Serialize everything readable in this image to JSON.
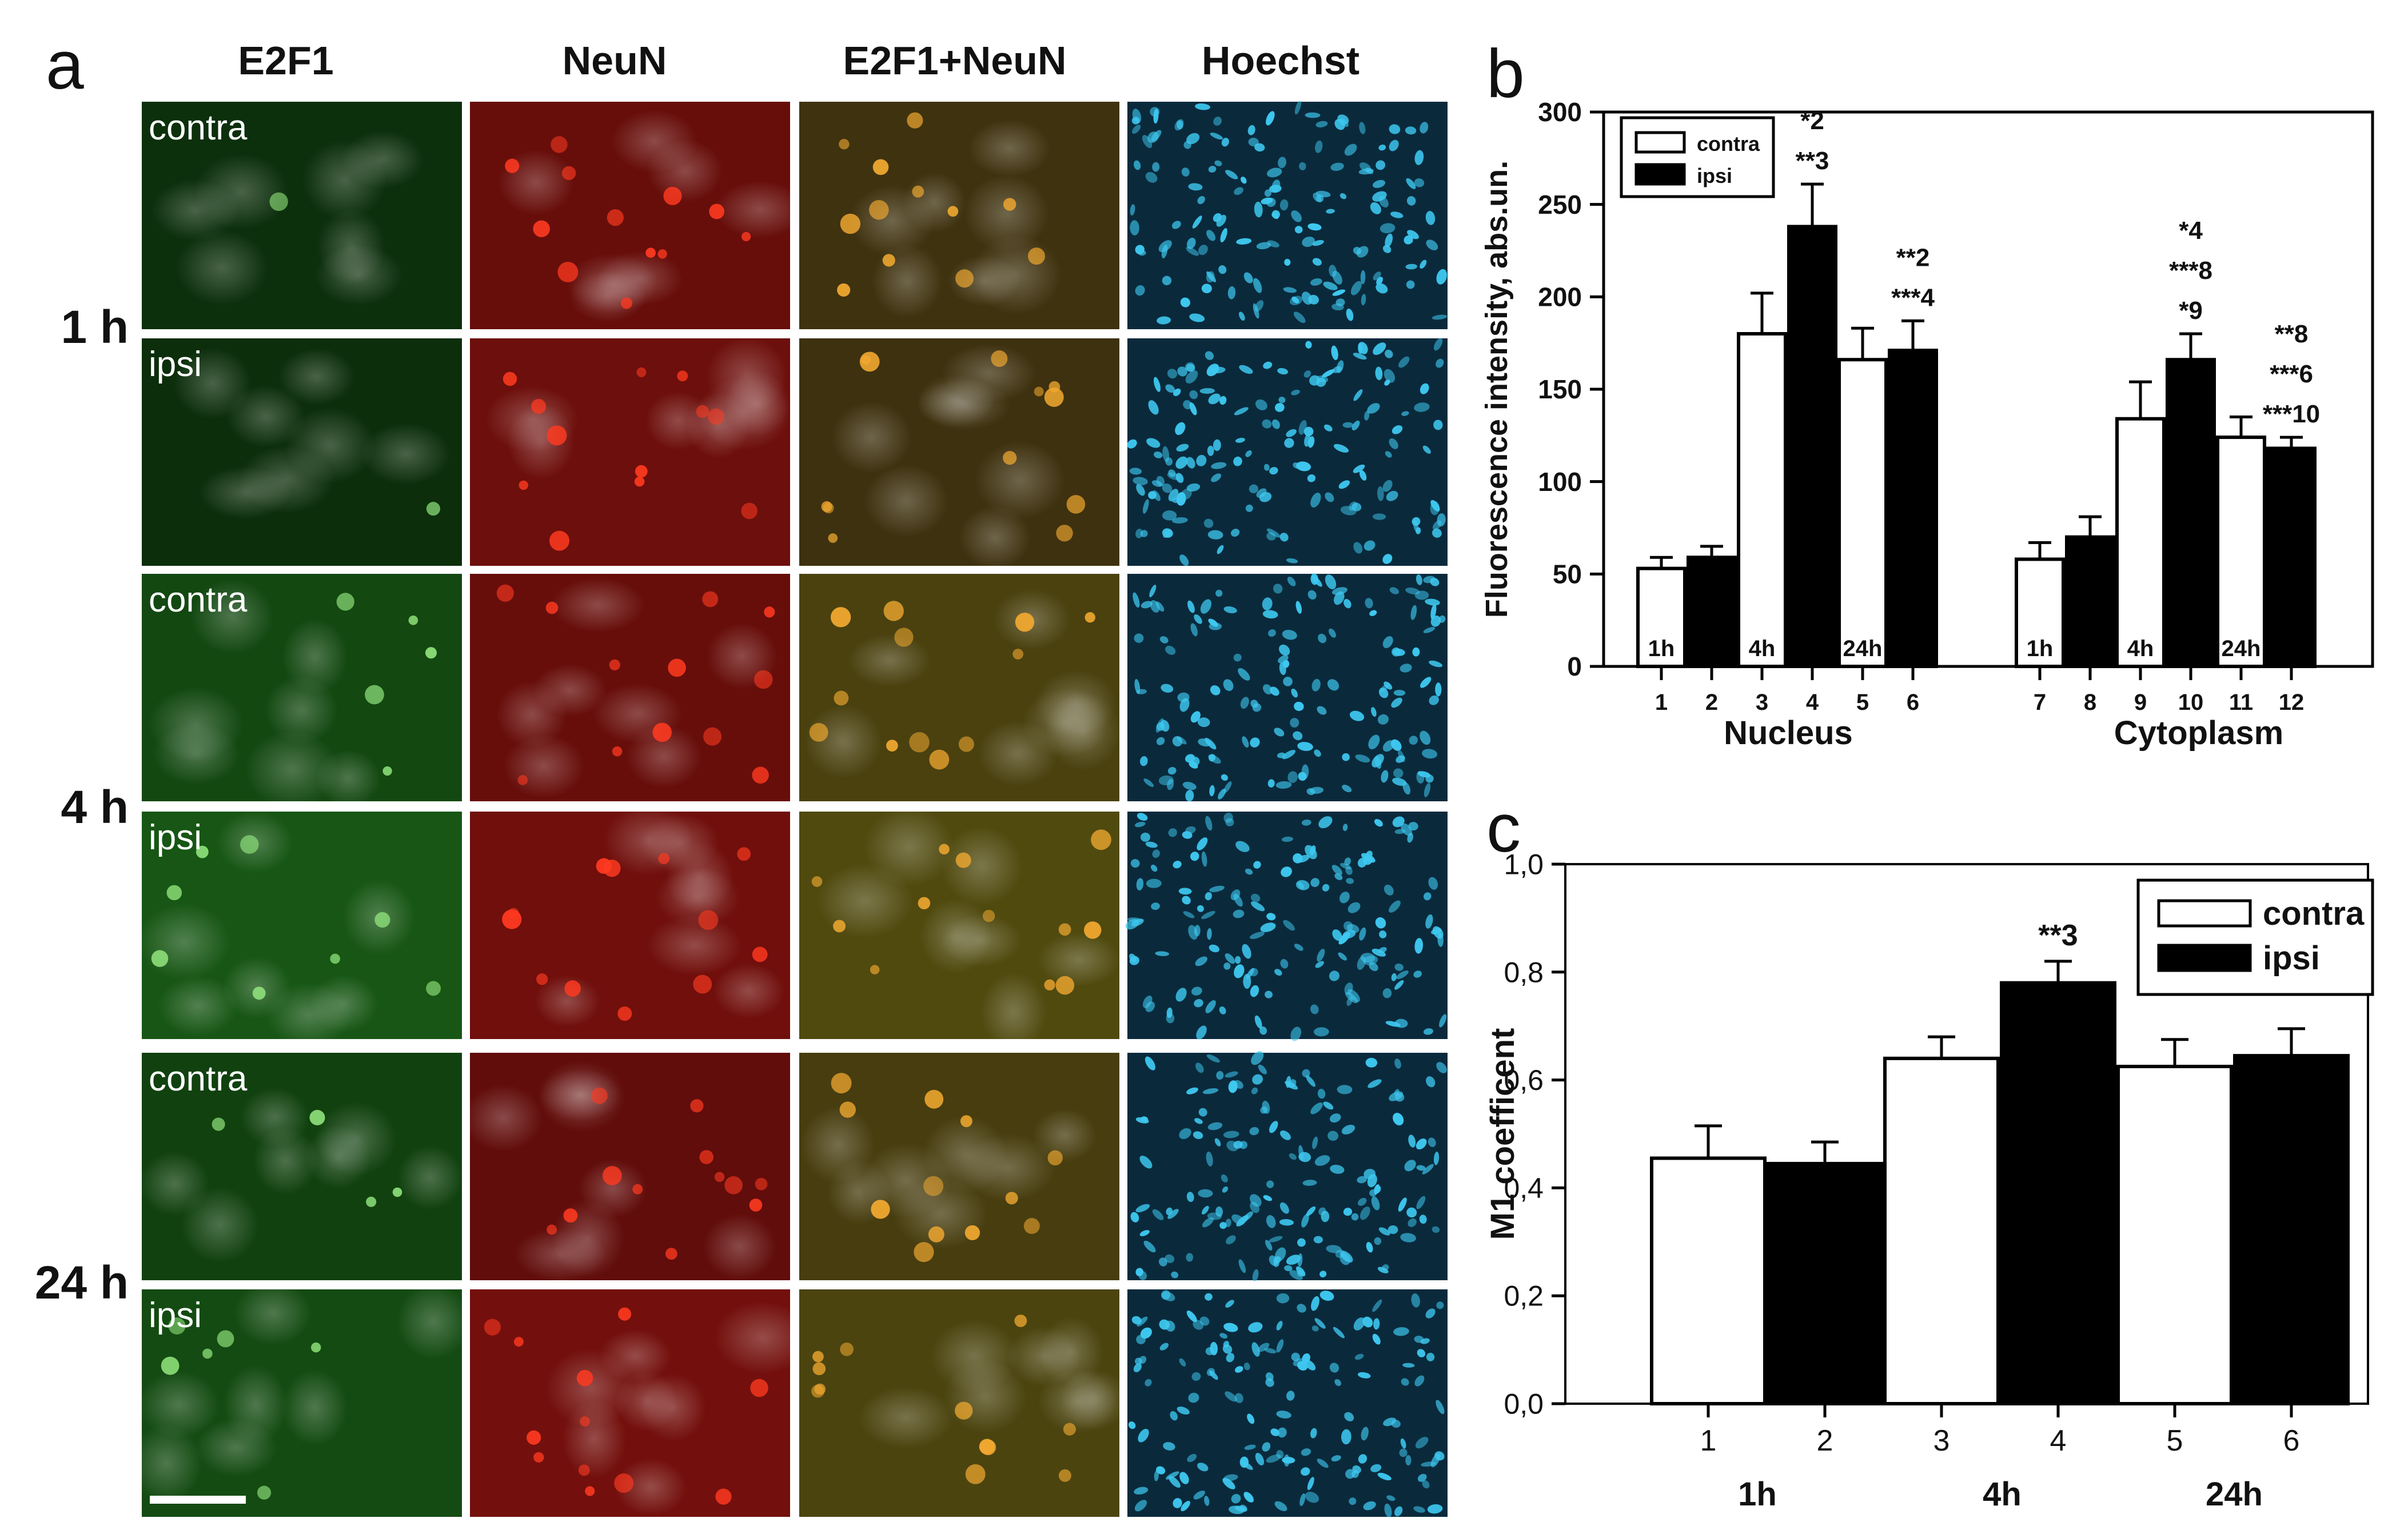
{
  "panel_a": {
    "panel_letter": "a",
    "columns": [
      "E2F1",
      "NeuN",
      "E2F1+NeuN",
      "Hoechst"
    ],
    "time_labels": [
      "1 h",
      "4 h",
      "24 h"
    ],
    "rows": [
      {
        "label": "contra",
        "time": "1 h",
        "green": 0.1,
        "red": 0.55
      },
      {
        "label": "ipsi",
        "time": "1 h",
        "green": 0.08,
        "red": 0.65
      },
      {
        "label": "contra",
        "time": "4 h",
        "green": 0.45,
        "red": 0.55
      },
      {
        "label": "ipsi",
        "time": "4 h",
        "green": 0.65,
        "red": 0.7
      },
      {
        "label": "contra",
        "time": "24 h",
        "green": 0.35,
        "red": 0.45
      },
      {
        "label": "ipsi",
        "time": "24 h",
        "green": 0.5,
        "red": 0.75
      }
    ],
    "colors": {
      "green": "#2f8a2a",
      "red": "#d41a10",
      "merge": "#6a4a18",
      "blue": "#3ec8f0"
    }
  },
  "chart_data": [
    {
      "panel_letter": "b",
      "type": "bar",
      "ylabel": "Fluorescence intensity, abs.un.",
      "ylim": [
        0,
        300
      ],
      "yticks": [
        "0",
        "50",
        "100",
        "150",
        "200",
        "250",
        "300"
      ],
      "groups": [
        "Nucleus",
        "Cytoplasm"
      ],
      "legend": {
        "position": "top-left",
        "entries": [
          "contra",
          "ipsi"
        ]
      },
      "categories": [
        "1",
        "2",
        "3",
        "4",
        "5",
        "6",
        "7",
        "8",
        "9",
        "10",
        "11",
        "12"
      ],
      "series": [
        {
          "name": "contra",
          "color": "#ffffff",
          "bars": [
            {
              "x": "1",
              "value": 53,
              "err": 6,
              "time_label": "1h",
              "annotation": []
            },
            {
              "x": "3",
              "value": 180,
              "err": 22,
              "time_label": "4h",
              "annotation": []
            },
            {
              "x": "5",
              "value": 166,
              "err": 17,
              "time_label": "24h",
              "annotation": []
            },
            {
              "x": "7",
              "value": 58,
              "err": 9,
              "time_label": "1h",
              "annotation": []
            },
            {
              "x": "9",
              "value": 134,
              "err": 20,
              "time_label": "4h",
              "annotation": []
            },
            {
              "x": "11",
              "value": 124,
              "err": 11,
              "time_label": "24h",
              "annotation": []
            }
          ]
        },
        {
          "name": "ipsi",
          "color": "#000000",
          "bars": [
            {
              "x": "2",
              "value": 59,
              "err": 6,
              "annotation": []
            },
            {
              "x": "4",
              "value": 238,
              "err": 23,
              "annotation": [
                "*2",
                "**3"
              ]
            },
            {
              "x": "6",
              "value": 171,
              "err": 16,
              "annotation": [
                "**2",
                "***4"
              ]
            },
            {
              "x": "8",
              "value": 70,
              "err": 11,
              "annotation": []
            },
            {
              "x": "10",
              "value": 166,
              "err": 14,
              "annotation": [
                "*4",
                "***8",
                "*9"
              ]
            },
            {
              "x": "12",
              "value": 118,
              "err": 6,
              "annotation": [
                "**8",
                "***6",
                "***10"
              ]
            }
          ]
        }
      ]
    },
    {
      "panel_letter": "c",
      "type": "bar",
      "ylabel": "M1 coefficent",
      "ylim": [
        0,
        1
      ],
      "yticks": [
        "0,0",
        "0,2",
        "0,4",
        "0,6",
        "0,8",
        "1,0"
      ],
      "groups": [
        "1h",
        "4h",
        "24h"
      ],
      "legend": {
        "position": "top-right",
        "entries": [
          "contra",
          "ipsi"
        ]
      },
      "categories": [
        "1",
        "2",
        "3",
        "4",
        "5",
        "6"
      ],
      "series": [
        {
          "name": "contra",
          "color": "#ffffff",
          "bars": [
            {
              "x": "1",
              "value": 0.455,
              "err": 0.06,
              "annotation": []
            },
            {
              "x": "3",
              "value": 0.64,
              "err": 0.04,
              "annotation": []
            },
            {
              "x": "5",
              "value": 0.625,
              "err": 0.05,
              "annotation": []
            }
          ]
        },
        {
          "name": "ipsi",
          "color": "#000000",
          "bars": [
            {
              "x": "2",
              "value": 0.445,
              "err": 0.04,
              "annotation": []
            },
            {
              "x": "4",
              "value": 0.78,
              "err": 0.04,
              "annotation": [
                "**3"
              ]
            },
            {
              "x": "6",
              "value": 0.645,
              "err": 0.05,
              "annotation": []
            }
          ]
        }
      ]
    }
  ]
}
